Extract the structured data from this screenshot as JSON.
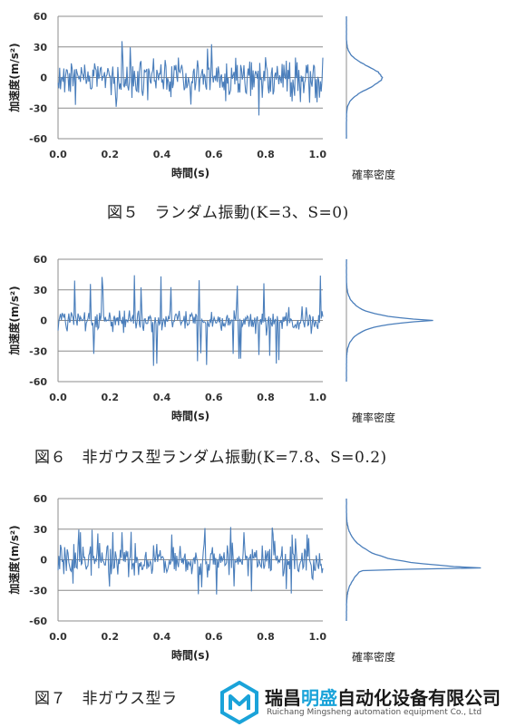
{
  "chart_data": [
    {
      "type": "line",
      "id": "fig5",
      "xlabel": "時間(s)",
      "ylabel": "加速度(m/s²)",
      "xlim": [
        0.0,
        1.02
      ],
      "ylim": [
        -60,
        60
      ],
      "xticks": [
        "0.0",
        "0.2",
        "0.4",
        "0.6",
        "0.8",
        "1.0"
      ],
      "yticks": [
        "60",
        "30",
        "0",
        "-30",
        "-60"
      ],
      "grid": true,
      "series_color": "#4a7ebb",
      "params": {
        "amp": 11,
        "spikes": 0,
        "spike_amp": 0,
        "seed": 5
      },
      "pdf_label": "確率密度",
      "pdf_shape": "gaussian"
    },
    {
      "type": "line",
      "id": "fig6",
      "xlabel": "時間(s)",
      "ylabel": "加速度(m/s²)",
      "xlim": [
        0.0,
        1.02
      ],
      "ylim": [
        -60,
        60
      ],
      "xticks": [
        "0.0",
        "0.2",
        "0.4",
        "0.6",
        "0.8",
        "1.0"
      ],
      "yticks": [
        "60",
        "30",
        "0",
        "-30",
        "-60"
      ],
      "grid": true,
      "series_color": "#4a7ebb",
      "params": {
        "amp": 5,
        "spikes": 28,
        "spike_amp": 45,
        "seed": 6
      },
      "pdf_label": "確率密度",
      "pdf_shape": "peaked"
    },
    {
      "type": "line",
      "id": "fig7",
      "xlabel": "時間(s)",
      "ylabel": "加速度(m/s²)",
      "xlim": [
        0.0,
        1.02
      ],
      "ylim": [
        -60,
        60
      ],
      "xticks": [
        "0.0",
        "0.2",
        "0.4",
        "0.6",
        "0.8",
        "1.0"
      ],
      "yticks": [
        "60",
        "30",
        "0",
        "-30",
        "-60"
      ],
      "grid": true,
      "series_color": "#4a7ebb",
      "params": {
        "amp": 10,
        "spikes": 18,
        "spike_amp": 35,
        "seed": 7
      },
      "pdf_label": "確率密度",
      "pdf_shape": "skewed"
    }
  ],
  "captions": {
    "fig5": "図５　ランダム振動(K=3、S=0)",
    "fig6": "図６　非ガウス型ランダム振動(K=7.8、S=0.2)",
    "fig7": "図７　非ガウス型ラ"
  },
  "watermark": {
    "name_part1": "瑞昌",
    "name_accent": "明盛",
    "name_part2": "自动化设备有限公司",
    "sub": "Ruichang Mingsheng automation equipment Co., Ltd",
    "logo_color": "#1aa3d9"
  }
}
